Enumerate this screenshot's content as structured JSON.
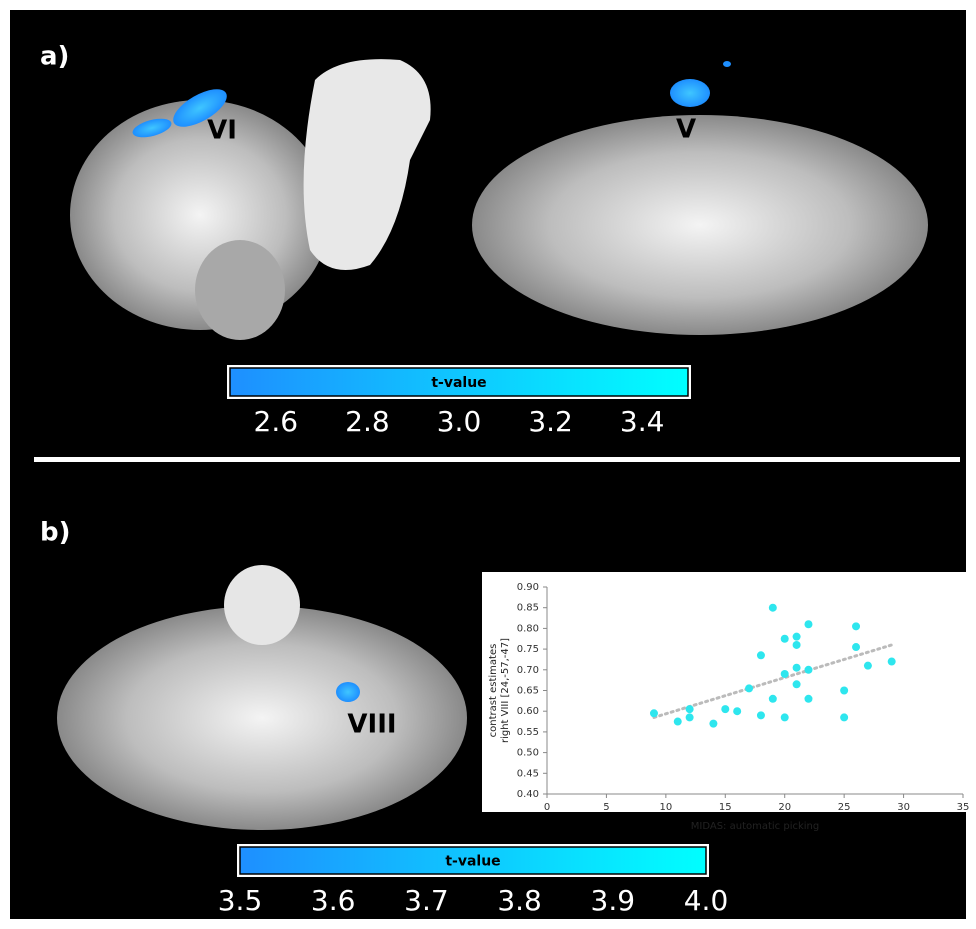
{
  "panels": [
    {
      "label": "a)",
      "regions": [
        "VI",
        "V"
      ]
    },
    {
      "label": "b)",
      "regions": [
        "VIII"
      ]
    }
  ],
  "chart_data": [
    {
      "type": "colorbar",
      "title": "t-value",
      "colors": [
        "#1e8fff",
        "#00ffff"
      ],
      "xlim": [
        2.5,
        3.5
      ],
      "xticks": [
        2.6,
        2.8,
        {
          "value": 3,
          "label": "3.0"
        },
        3.2,
        3.4
      ]
    },
    {
      "type": "colorbar",
      "title": "t-value",
      "colors": [
        "#1e8fff",
        "#00ffff"
      ],
      "xlim": [
        3.5,
        4.0
      ],
      "xticks": [
        3.5,
        3.6,
        3.7,
        3.8,
        3.9,
        {
          "value": 4,
          "label": "4.0"
        }
      ]
    },
    {
      "type": "scatter",
      "xlabel": "MIDAS: automatic picking",
      "ylabel": [
        "contrast estimates",
        "right VIII [24,-57,-47]"
      ],
      "color": "#2ee6ee",
      "xlim": [
        0,
        35
      ],
      "xticks": [
        0,
        5,
        10,
        15,
        20,
        25,
        30,
        35
      ],
      "ylim": [
        0.4,
        0.9
      ],
      "yticks": [
        {
          "value": 0.4,
          "label": "0.40"
        },
        0.45,
        {
          "value": 0.5,
          "label": "0.50"
        },
        0.55,
        {
          "value": 0.6,
          "label": "0.60"
        },
        0.65,
        {
          "value": 0.7,
          "label": "0.70"
        },
        0.75,
        {
          "value": 0.8,
          "label": "0.80"
        },
        0.85,
        {
          "value": 0.9,
          "label": "0.90"
        }
      ],
      "x": [
        9,
        11,
        12,
        12,
        14,
        15,
        16,
        17,
        18,
        18,
        19,
        19,
        20,
        20,
        20,
        21,
        21,
        21,
        21,
        22,
        22,
        22,
        25,
        25,
        26,
        26,
        27,
        29
      ],
      "values": [
        0.595,
        0.575,
        0.585,
        0.605,
        0.57,
        0.605,
        0.6,
        0.655,
        0.59,
        0.735,
        0.85,
        0.63,
        0.585,
        0.69,
        0.775,
        0.78,
        0.76,
        0.705,
        0.665,
        0.81,
        0.7,
        0.63,
        0.65,
        0.585,
        0.805,
        0.755,
        0.71,
        0.72
      ],
      "trendline": {
        "x": [
          9,
          29
        ],
        "values": [
          0.585,
          0.76
        ]
      }
    }
  ]
}
